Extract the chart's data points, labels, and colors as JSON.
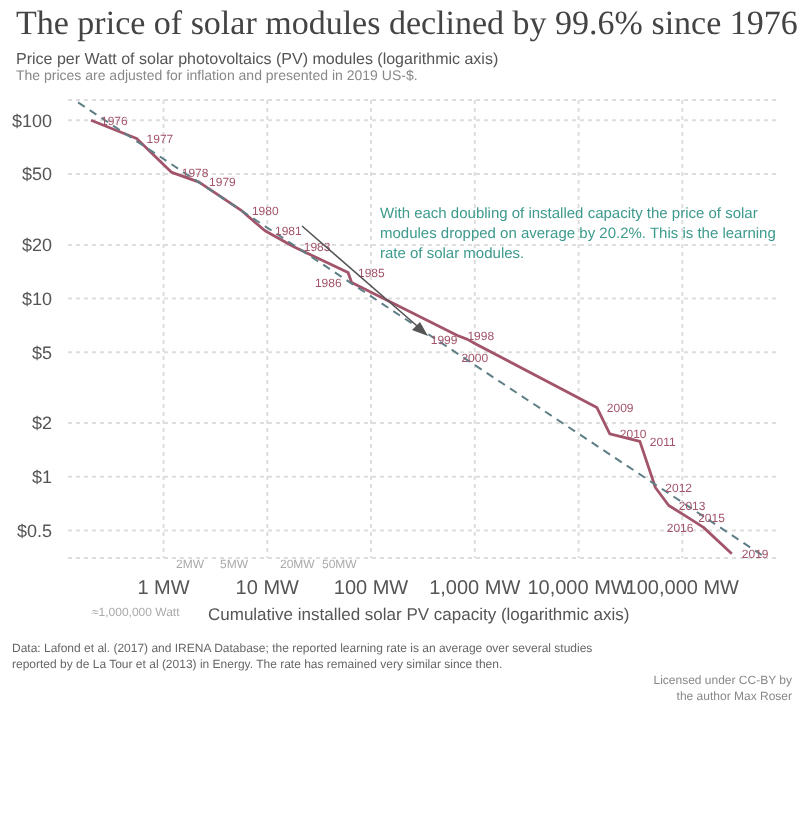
{
  "chart_data": {
    "type": "line",
    "title": "The price of solar modules declined by 99.6% since 1976",
    "subtitle": "The prices are adjusted for inflation and presented in 2019 US-$.",
    "ylabel": "Price per Watt of solar photovoltaics (PV) modules (logarithmic axis)",
    "xlabel": "Cumulative installed solar PV capacity (logarithmic axis)",
    "log": "xy",
    "grid": true,
    "legend": false,
    "marker": "none",
    "xlim": [
      0.12,
      800000
    ],
    "ylim": [
      0.35,
      130
    ],
    "xticks": [
      {
        "value": 1,
        "label": "1 MW"
      },
      {
        "value": 10,
        "label": "10 MW"
      },
      {
        "value": 100,
        "label": "100 MW"
      },
      {
        "value": 1000,
        "label": "1,000 MW"
      },
      {
        "value": 10000,
        "label": "10,000 MW"
      },
      {
        "value": 100000,
        "label": "100,000 MW"
      }
    ],
    "yticks": [
      {
        "value": 0.5,
        "label": "$0.5"
      },
      {
        "value": 1,
        "label": "$1"
      },
      {
        "value": 2,
        "label": "$2"
      },
      {
        "value": 5,
        "label": "$5"
      },
      {
        "value": 10,
        "label": "$10"
      },
      {
        "value": 20,
        "label": "$20"
      },
      {
        "value": 50,
        "label": "$50"
      },
      {
        "value": 100,
        "label": "$100"
      }
    ],
    "series": [
      {
        "type": "line",
        "color": "#a2546a",
        "line_style": "solid",
        "x": [
          0.2,
          0.55,
          1.2,
          2.2,
          5.7,
          9.5,
          18,
          60,
          65,
          680,
          850,
          1000,
          15000,
          20000,
          39000,
          55000,
          74000,
          114000,
          160000,
          300000
        ],
        "values": [
          100,
          79,
          51,
          45,
          31,
          24,
          19.5,
          14,
          12.3,
          6.2,
          5.9,
          5.6,
          2.45,
          1.74,
          1.58,
          0.87,
          0.69,
          0.59,
          0.52,
          0.37
        ]
      },
      {
        "type": "line",
        "color": "#5f7f86",
        "line_style": "dashed",
        "x": [
          0.15,
          600000
        ],
        "values": [
          126,
          0.36
        ]
      }
    ],
    "annotations": [
      {
        "text": "1976",
        "x": 0.2,
        "y": 100
      },
      {
        "text": "1977",
        "x": 0.55,
        "y": 79
      },
      {
        "text": "1978",
        "x": 1.2,
        "y": 51
      },
      {
        "text": "1979",
        "x": 2.2,
        "y": 45
      },
      {
        "text": "1980",
        "x": 5.7,
        "y": 31
      },
      {
        "text": "1981",
        "x": 9.5,
        "y": 24
      },
      {
        "text": "1983",
        "x": 18,
        "y": 19.5
      },
      {
        "text": "1985",
        "x": 60,
        "y": 14
      },
      {
        "text": "1986",
        "x": 65,
        "y": 12.3
      },
      {
        "text": "1998",
        "x": 680,
        "y": 6.2
      },
      {
        "text": "1999",
        "x": 850,
        "y": 5.9
      },
      {
        "text": "2000",
        "x": 1000,
        "y": 5.6
      },
      {
        "text": "2009",
        "x": 15000,
        "y": 2.45
      },
      {
        "text": "2010",
        "x": 20000,
        "y": 1.74
      },
      {
        "text": "2011",
        "x": 39000,
        "y": 1.58
      },
      {
        "text": "2012",
        "x": 55000,
        "y": 0.87
      },
      {
        "text": "2013",
        "x": 74000,
        "y": 0.69
      },
      {
        "text": "2015",
        "x": 114000,
        "y": 0.59
      },
      {
        "text": "2016",
        "x": 160000,
        "y": 0.52
      },
      {
        "text": "2019",
        "x": 300000,
        "y": 0.37
      },
      "2MW",
      "5MW",
      "20MW",
      "50MW",
      "With each doubling of installed capacity the price of solar modules dropped on average by 20.2%. This is the learning rate of solar modules.",
      "≈1,000,000 Watt",
      "Data: Lafond et al. (2017) and IRENA Database; the reported learning rate is an average over several studies reported by de La Tour et al (2013) in Energy. The rate has remained very similar since then.",
      "Licensed under CC-BY by the author Max Roser"
    ]
  }
}
